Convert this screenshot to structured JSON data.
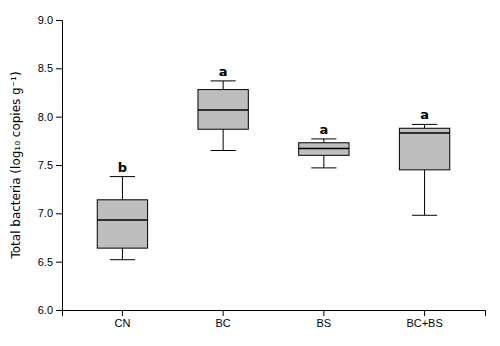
{
  "chart_data": {
    "type": "box",
    "categories": [
      "CN",
      "BC",
      "BS",
      "BC+BS"
    ],
    "boxes": [
      {
        "whislo": 6.52,
        "q1": 6.64,
        "med": 6.93,
        "q3": 7.14,
        "whishi": 7.38
      },
      {
        "whislo": 7.65,
        "q1": 7.87,
        "med": 8.07,
        "q3": 8.28,
        "whishi": 8.37
      },
      {
        "whislo": 7.47,
        "q1": 7.6,
        "med": 7.67,
        "q3": 7.73,
        "whishi": 7.77
      },
      {
        "whislo": 6.98,
        "q1": 7.45,
        "med": 7.83,
        "q3": 7.88,
        "whishi": 7.92
      }
    ],
    "letters": [
      "b",
      "a",
      "a",
      "a"
    ],
    "y_label": "Total bacteria (log₁₀ copies g⁻¹)",
    "ylim": [
      6.0,
      9.0
    ],
    "yticks": [
      {
        "value": 6.0,
        "label": "6.0"
      },
      {
        "value": 6.5,
        "label": "6.5"
      },
      {
        "value": 7.0,
        "label": "7.0"
      },
      {
        "value": 7.5,
        "label": "7.5"
      },
      {
        "value": 8.0,
        "label": "8.0"
      },
      {
        "value": 8.5,
        "label": "8.5"
      },
      {
        "value": 9.0,
        "label": "9.0"
      }
    ],
    "color": "#bebebe",
    "grid": false
  }
}
